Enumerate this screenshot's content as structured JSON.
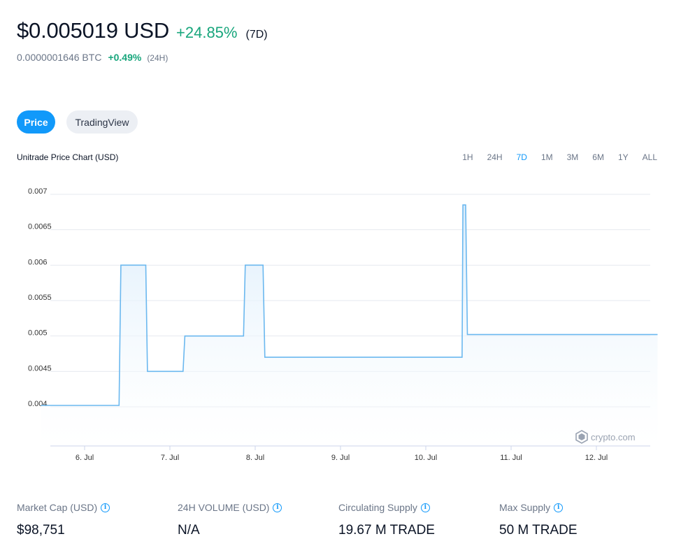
{
  "header": {
    "price": "$0.005019 USD",
    "change": "+24.85%",
    "range": "(7D)",
    "btc_price": "0.0000001646 BTC",
    "btc_change": "+0.49%",
    "btc_range": "(24H)"
  },
  "tabs": {
    "price": "Price",
    "tradingview": "TradingView"
  },
  "chart_header": {
    "title": "Unitrade Price Chart (USD)",
    "ranges": [
      "1H",
      "24H",
      "7D",
      "1M",
      "3M",
      "6M",
      "1Y",
      "ALL"
    ],
    "selected_range": "7D"
  },
  "watermark": "crypto.com",
  "colors": {
    "accent": "#1199fa",
    "positive": "#18a67c",
    "line": "#6bb8ef"
  },
  "chart_data": {
    "type": "area",
    "title": "Unitrade Price Chart (USD)",
    "xlabel": "",
    "ylabel": "",
    "x_ticks": [
      "6. Jul",
      "7. Jul",
      "8. Jul",
      "9. Jul",
      "10. Jul",
      "11. Jul",
      "12. Jul"
    ],
    "y_ticks": [
      "0.004",
      "0.0045",
      "0.005",
      "0.0055",
      "0.006",
      "0.0065",
      "0.007"
    ],
    "ylim": [
      0.0037,
      0.0073
    ],
    "grid": true,
    "series": [
      {
        "x": [
          "2021-07-05 18:00",
          "2021-07-06 16:00",
          "2021-07-06 16:30",
          "2021-07-06 23:30",
          "2021-07-06 23:59",
          "2021-07-07 10:00",
          "2021-07-07 10:30",
          "2021-07-08 03:00",
          "2021-07-08 03:30",
          "2021-07-08 08:30",
          "2021-07-08 09:00",
          "2021-07-09 10:00",
          "2021-07-09 11:00",
          "2021-07-10 16:30",
          "2021-07-10 16:45",
          "2021-07-10 17:30",
          "2021-07-10 18:00",
          "2021-07-11 09:00",
          "2021-07-12 23:30"
        ],
        "y": [
          0.00402,
          0.00402,
          0.006,
          0.006,
          0.0045,
          0.0045,
          0.005,
          0.005,
          0.006,
          0.006,
          0.0047,
          0.0047,
          0.0047,
          0.0047,
          0.00685,
          0.00685,
          0.00502,
          0.00502,
          0.00502
        ]
      }
    ]
  },
  "stats": [
    {
      "label": "Market Cap (USD)",
      "value": "$98,751"
    },
    {
      "label": "24H VOLUME (USD)",
      "value": "N/A"
    },
    {
      "label": "Circulating Supply",
      "value": "19.67 M TRADE"
    },
    {
      "label": "Max Supply",
      "value": "50 M TRADE"
    }
  ],
  "info_icon": "info-icon"
}
